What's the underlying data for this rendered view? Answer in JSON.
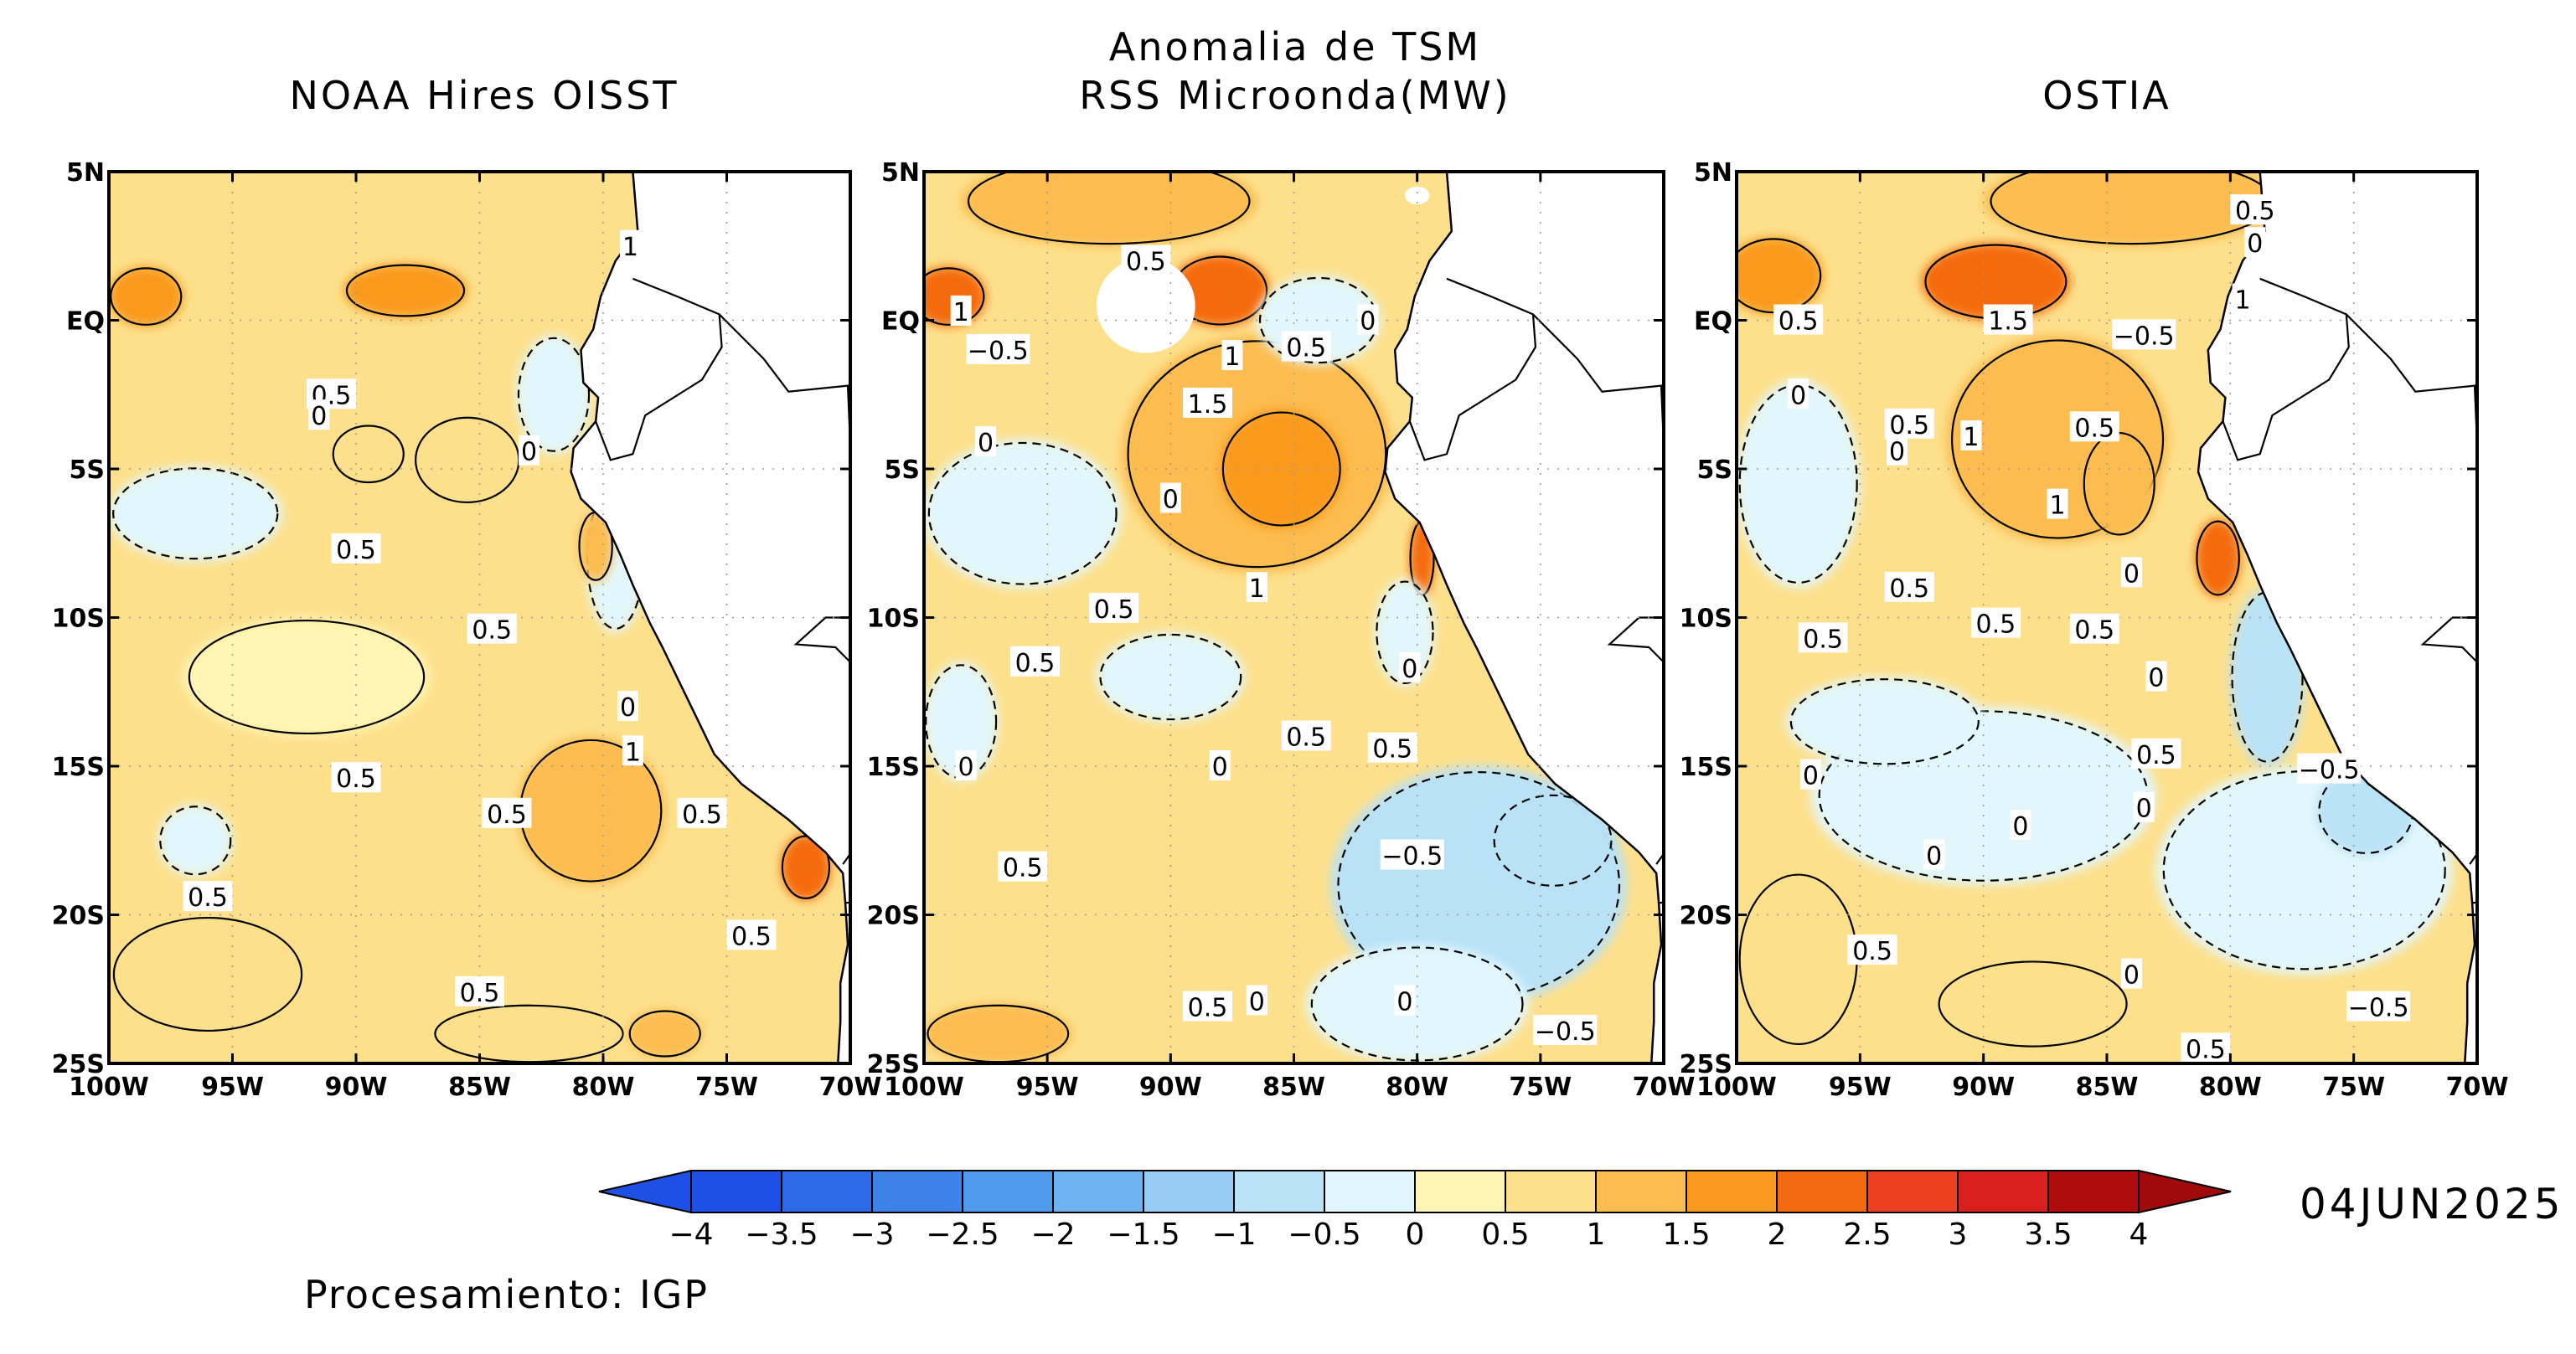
{
  "header": {
    "title_line1": "Anomalia de TSM",
    "title_line2": "RSS Microonda(MW)"
  },
  "panels": [
    {
      "title": "NOAA Hires OISST",
      "base_level": "0.5",
      "labels": [
        {
          "lon": -78.9,
          "lat": 2.5,
          "text": "1"
        },
        {
          "lon": -91.0,
          "lat": -2.5,
          "text": "0.5"
        },
        {
          "lon": -91.5,
          "lat": -3.2,
          "text": "0"
        },
        {
          "lon": -83.0,
          "lat": -4.4,
          "text": "0"
        },
        {
          "lon": -90.0,
          "lat": -7.7,
          "text": "0.5"
        },
        {
          "lon": -84.5,
          "lat": -10.4,
          "text": "0.5"
        },
        {
          "lon": -79.0,
          "lat": -13.0,
          "text": "0"
        },
        {
          "lon": -78.8,
          "lat": -14.5,
          "text": "1"
        },
        {
          "lon": -90.0,
          "lat": -15.4,
          "text": "0.5"
        },
        {
          "lon": -83.9,
          "lat": -16.6,
          "text": "0.5"
        },
        {
          "lon": -76.0,
          "lat": -16.6,
          "text": "0.5"
        },
        {
          "lon": -96.0,
          "lat": -19.4,
          "text": "0.5"
        },
        {
          "lon": -85.0,
          "lat": -22.6,
          "text": "0.5"
        },
        {
          "lon": -74.0,
          "lat": -20.7,
          "text": "0.5"
        }
      ],
      "blobs": [
        {
          "lon": -96.5,
          "lat": -6.5,
          "rx": 3.5,
          "ry": 1.6,
          "level": "-0.3"
        },
        {
          "lon": -79.5,
          "lat": -8.0,
          "rx": 1.2,
          "ry": 2.5,
          "level": "-0.4"
        },
        {
          "lon": -82.0,
          "lat": -2.5,
          "rx": 1.5,
          "ry": 2.0,
          "level": "-0.3"
        },
        {
          "lon": -96.5,
          "lat": -17.5,
          "rx": 1.5,
          "ry": 1.2,
          "level": "-0.2"
        },
        {
          "lon": -88.0,
          "lat": 1.0,
          "rx": 2.5,
          "ry": 0.9,
          "level": "1.6"
        },
        {
          "lon": -98.5,
          "lat": 0.8,
          "rx": 1.5,
          "ry": 1.0,
          "level": "1.5"
        },
        {
          "lon": -85.5,
          "lat": -4.7,
          "rx": 2.2,
          "ry": 1.5,
          "level": "0.9"
        },
        {
          "lon": -89.5,
          "lat": -4.5,
          "rx": 1.5,
          "ry": 1.0,
          "level": "0.8"
        },
        {
          "lon": -80.5,
          "lat": -16.5,
          "rx": 3.0,
          "ry": 2.5,
          "level": "1.0"
        },
        {
          "lon": -71.8,
          "lat": -18.4,
          "rx": 1.0,
          "ry": 1.1,
          "level": "2.2"
        },
        {
          "lon": -80.3,
          "lat": -7.6,
          "rx": 0.7,
          "ry": 1.2,
          "level": "1.3"
        },
        {
          "lon": -83.0,
          "lat": -24.0,
          "rx": 4.0,
          "ry": 1.0,
          "level": "0.9"
        },
        {
          "lon": -77.5,
          "lat": -24.0,
          "rx": 1.5,
          "ry": 0.8,
          "level": "1.0"
        },
        {
          "lon": -92.0,
          "lat": -12.0,
          "rx": 5.0,
          "ry": 2.0,
          "level": "0.3"
        },
        {
          "lon": -96.0,
          "lat": -22.0,
          "rx": 4.0,
          "ry": 2.0,
          "level": "0.7"
        }
      ]
    },
    {
      "title": "",
      "base_level": "0.5",
      "labels": [
        {
          "lon": -91.0,
          "lat": 2.0,
          "text": "0.5"
        },
        {
          "lon": -98.5,
          "lat": 0.3,
          "text": "1"
        },
        {
          "lon": -97.0,
          "lat": -1.0,
          "text": "−0.5"
        },
        {
          "lon": -87.5,
          "lat": -1.2,
          "text": "1"
        },
        {
          "lon": -84.5,
          "lat": -0.9,
          "text": "0.5"
        },
        {
          "lon": -82.0,
          "lat": 0.0,
          "text": "0"
        },
        {
          "lon": -88.5,
          "lat": -2.8,
          "text": "1.5"
        },
        {
          "lon": -97.5,
          "lat": -4.1,
          "text": "0"
        },
        {
          "lon": -90.0,
          "lat": -6.0,
          "text": "0"
        },
        {
          "lon": -86.5,
          "lat": -9.0,
          "text": "1"
        },
        {
          "lon": -92.3,
          "lat": -9.7,
          "text": "0.5"
        },
        {
          "lon": -95.5,
          "lat": -11.5,
          "text": "0.5"
        },
        {
          "lon": -80.3,
          "lat": -11.7,
          "text": "0"
        },
        {
          "lon": -84.5,
          "lat": -14.0,
          "text": "0.5"
        },
        {
          "lon": -81.0,
          "lat": -14.4,
          "text": "0.5"
        },
        {
          "lon": -88.0,
          "lat": -15.0,
          "text": "0"
        },
        {
          "lon": -98.3,
          "lat": -15.0,
          "text": "0"
        },
        {
          "lon": -80.2,
          "lat": -18.0,
          "text": "−0.5"
        },
        {
          "lon": -96.0,
          "lat": -18.4,
          "text": "0.5"
        },
        {
          "lon": -88.5,
          "lat": -23.1,
          "text": "0.5"
        },
        {
          "lon": -86.5,
          "lat": -22.9,
          "text": "0"
        },
        {
          "lon": -80.5,
          "lat": -22.9,
          "text": "0"
        },
        {
          "lon": -74.0,
          "lat": -23.9,
          "text": "−0.5"
        }
      ],
      "blobs": [
        {
          "lon": -86.5,
          "lat": -4.5,
          "rx": 5.5,
          "ry": 4.0,
          "level": "1.2"
        },
        {
          "lon": -85.5,
          "lat": -5.0,
          "rx": 2.5,
          "ry": 2.0,
          "level": "1.6"
        },
        {
          "lon": -88.0,
          "lat": 1.0,
          "rx": 2.0,
          "ry": 1.2,
          "level": "2.2"
        },
        {
          "lon": -99.0,
          "lat": 0.8,
          "rx": 1.5,
          "ry": 1.0,
          "level": "2.3"
        },
        {
          "lon": -92.5,
          "lat": 4.0,
          "rx": 6.0,
          "ry": 1.5,
          "level": "1.3"
        },
        {
          "lon": -96.0,
          "lat": -6.5,
          "rx": 4.0,
          "ry": 2.5,
          "level": "-0.3"
        },
        {
          "lon": -84.0,
          "lat": 0.0,
          "rx": 2.5,
          "ry": 1.5,
          "level": "-0.3"
        },
        {
          "lon": -77.5,
          "lat": -19.0,
          "rx": 6.0,
          "ry": 4.0,
          "level": "-0.6"
        },
        {
          "lon": -74.5,
          "lat": -17.5,
          "rx": 2.5,
          "ry": 1.6,
          "level": "-0.9"
        },
        {
          "lon": -80.0,
          "lat": -23.0,
          "rx": 4.5,
          "ry": 2.0,
          "level": "-0.5"
        },
        {
          "lon": -79.8,
          "lat": -8.0,
          "rx": 0.5,
          "ry": 1.3,
          "level": "2.4"
        },
        {
          "lon": -97.0,
          "lat": -24.0,
          "rx": 3.0,
          "ry": 1.0,
          "level": "1.0"
        },
        {
          "lon": -98.5,
          "lat": -13.5,
          "rx": 1.5,
          "ry": 2.0,
          "level": "-0.2"
        },
        {
          "lon": -90.0,
          "lat": -12.0,
          "rx": 3.0,
          "ry": 1.5,
          "level": "-0.2"
        },
        {
          "lon": -80.5,
          "lat": -10.5,
          "rx": 1.2,
          "ry": 1.8,
          "level": "-0.4"
        }
      ],
      "masks": [
        {
          "lon": -91.0,
          "lat": 0.5,
          "rx": 2.0,
          "ry": 1.6
        },
        {
          "lon": -80.0,
          "lat": 4.2,
          "rx": 0.5,
          "ry": 0.3
        }
      ]
    },
    {
      "title": "OSTIA",
      "base_level": "0.5",
      "labels": [
        {
          "lon": -79.0,
          "lat": 3.7,
          "text": "0.5"
        },
        {
          "lon": -79.0,
          "lat": 2.6,
          "text": "0"
        },
        {
          "lon": -97.5,
          "lat": 0.0,
          "text": "0.5"
        },
        {
          "lon": -89.0,
          "lat": 0.0,
          "text": "1.5"
        },
        {
          "lon": -83.5,
          "lat": -0.5,
          "text": "−0.5"
        },
        {
          "lon": -79.5,
          "lat": 0.7,
          "text": "1"
        },
        {
          "lon": -97.5,
          "lat": -2.5,
          "text": "0"
        },
        {
          "lon": -93.0,
          "lat": -3.5,
          "text": "0.5"
        },
        {
          "lon": -93.5,
          "lat": -4.4,
          "text": "0"
        },
        {
          "lon": -90.5,
          "lat": -3.9,
          "text": "1"
        },
        {
          "lon": -85.5,
          "lat": -3.6,
          "text": "0.5"
        },
        {
          "lon": -87.0,
          "lat": -6.2,
          "text": "1"
        },
        {
          "lon": -84.0,
          "lat": -8.5,
          "text": "0"
        },
        {
          "lon": -93.0,
          "lat": -9.0,
          "text": "0.5"
        },
        {
          "lon": -89.5,
          "lat": -10.2,
          "text": "0.5"
        },
        {
          "lon": -85.5,
          "lat": -10.4,
          "text": "0.5"
        },
        {
          "lon": -96.5,
          "lat": -10.7,
          "text": "0.5"
        },
        {
          "lon": -83.0,
          "lat": -12.0,
          "text": "0"
        },
        {
          "lon": -83.0,
          "lat": -14.6,
          "text": "0.5"
        },
        {
          "lon": -76.0,
          "lat": -15.1,
          "text": "−0.5"
        },
        {
          "lon": -97.0,
          "lat": -15.3,
          "text": "0"
        },
        {
          "lon": -83.5,
          "lat": -16.4,
          "text": "0"
        },
        {
          "lon": -88.5,
          "lat": -17.0,
          "text": "0"
        },
        {
          "lon": -92.0,
          "lat": -18.0,
          "text": "0"
        },
        {
          "lon": -94.5,
          "lat": -21.2,
          "text": "0.5"
        },
        {
          "lon": -84.0,
          "lat": -22.0,
          "text": "0"
        },
        {
          "lon": -74.0,
          "lat": -23.1,
          "text": "−0.5"
        },
        {
          "lon": -81.0,
          "lat": -24.5,
          "text": "0.5"
        }
      ],
      "blobs": [
        {
          "lon": -87.0,
          "lat": -4.0,
          "rx": 4.5,
          "ry": 3.5,
          "level": "1.0"
        },
        {
          "lon": -84.5,
          "lat": -5.5,
          "rx": 1.5,
          "ry": 1.8,
          "level": "1.4"
        },
        {
          "lon": -89.5,
          "lat": 1.3,
          "rx": 3.0,
          "ry": 1.3,
          "level": "2.1"
        },
        {
          "lon": -98.5,
          "lat": 1.5,
          "rx": 2.0,
          "ry": 1.3,
          "level": "1.6"
        },
        {
          "lon": -84.0,
          "lat": 4.0,
          "rx": 6.0,
          "ry": 1.5,
          "level": "1.1"
        },
        {
          "lon": -77.0,
          "lat": -18.5,
          "rx": 6.0,
          "ry": 3.5,
          "level": "-0.3"
        },
        {
          "lon": -74.5,
          "lat": -16.5,
          "rx": 2.0,
          "ry": 1.5,
          "level": "-0.8"
        },
        {
          "lon": -78.5,
          "lat": -12.0,
          "rx": 1.5,
          "ry": 3.0,
          "level": "-0.6"
        },
        {
          "lon": -80.5,
          "lat": -8.0,
          "rx": 0.9,
          "ry": 1.3,
          "level": "2.0"
        },
        {
          "lon": -97.5,
          "lat": -5.5,
          "rx": 2.5,
          "ry": 3.5,
          "level": "-0.3"
        },
        {
          "lon": -90.0,
          "lat": -16.0,
          "rx": 7.0,
          "ry": 3.0,
          "level": "-0.2"
        },
        {
          "lon": -94.0,
          "lat": -13.5,
          "rx": 4.0,
          "ry": 1.5,
          "level": "-0.3"
        },
        {
          "lon": -97.5,
          "lat": -21.5,
          "rx": 2.5,
          "ry": 3.0,
          "level": "0.8"
        },
        {
          "lon": -88.0,
          "lat": -23.0,
          "rx": 4.0,
          "ry": 1.5,
          "level": "0.7"
        }
      ]
    }
  ],
  "axes": {
    "lat_ticks": [
      "5N",
      "EQ",
      "5S",
      "10S",
      "15S",
      "20S",
      "25S"
    ],
    "lon_ticks": [
      "100W",
      "95W",
      "90W",
      "85W",
      "80W",
      "75W",
      "70W"
    ]
  },
  "map_extent": {
    "lon_min": -100,
    "lon_max": -70,
    "lat_min": -25,
    "lat_max": 5
  },
  "colorbar": {
    "labels": [
      "−4",
      "−3.5",
      "−3",
      "−2.5",
      "−2",
      "−1.5",
      "−1",
      "−0.5",
      "0",
      "0.5",
      "1",
      "1.5",
      "2",
      "2.5",
      "3",
      "3.5",
      "4"
    ],
    "colors": [
      "#1e50e6",
      "#2d6ae8",
      "#3c82ea",
      "#509aec",
      "#6eb2f0",
      "#96cbf5",
      "#b9e2f7",
      "#e2f7fb",
      "#fff5b4",
      "#fde08c",
      "#fcbc50",
      "#f99a1e",
      "#f56a10",
      "#ee4020",
      "#d8201c",
      "#b00c0c"
    ],
    "under_color": "#1e50e6",
    "over_color": "#a00a0a"
  },
  "date": "04JUN2025",
  "credit": "Procesamiento: IGP",
  "land_color": "#ffffff",
  "coast_outline": [
    [
      -78.8,
      5.0
    ],
    [
      -78.6,
      3.0
    ],
    [
      -79.5,
      2.0
    ],
    [
      -80.1,
      0.8
    ],
    [
      -80.4,
      -0.3
    ],
    [
      -80.9,
      -1.0
    ],
    [
      -80.8,
      -2.1
    ],
    [
      -80.2,
      -2.6
    ],
    [
      -80.3,
      -3.4
    ],
    [
      -81.2,
      -4.3
    ],
    [
      -81.3,
      -5.1
    ],
    [
      -80.9,
      -6.0
    ],
    [
      -79.9,
      -6.8
    ],
    [
      -79.3,
      -7.9
    ],
    [
      -78.8,
      -8.9
    ],
    [
      -78.1,
      -10.2
    ],
    [
      -77.6,
      -11.0
    ],
    [
      -76.9,
      -12.2
    ],
    [
      -76.2,
      -13.4
    ],
    [
      -75.5,
      -14.6
    ],
    [
      -74.4,
      -15.6
    ],
    [
      -72.5,
      -16.8
    ],
    [
      -71.0,
      -17.9
    ],
    [
      -70.3,
      -18.6
    ],
    [
      -70.2,
      -19.6
    ],
    [
      -70.1,
      -21.0
    ],
    [
      -70.4,
      -22.3
    ],
    [
      -70.4,
      -23.6
    ],
    [
      -70.5,
      -25.0
    ]
  ],
  "borders": [
    [
      [
        -78.8,
        1.4
      ],
      [
        -77.0,
        0.8
      ],
      [
        -75.3,
        0.2
      ],
      [
        -75.2,
        -0.9
      ],
      [
        -76.0,
        -2.0
      ],
      [
        -78.3,
        -3.2
      ],
      [
        -78.8,
        -4.5
      ],
      [
        -79.7,
        -4.7
      ],
      [
        -80.3,
        -3.4
      ]
    ],
    [
      [
        -75.3,
        0.2
      ],
      [
        -73.5,
        -1.3
      ],
      [
        -72.5,
        -2.4
      ],
      [
        -70.1,
        -2.2
      ],
      [
        -70.0,
        -4.2
      ]
    ],
    [
      [
        -70.0,
        -10.0
      ],
      [
        -71.0,
        -10.0
      ],
      [
        -72.2,
        -10.9
      ],
      [
        -70.6,
        -11.0
      ],
      [
        -70.0,
        -11.5
      ]
    ],
    [
      [
        -70.0,
        -13.5
      ],
      [
        -69.6,
        -15.3
      ],
      [
        -69.4,
        -16.4
      ],
      [
        -69.7,
        -17.6
      ],
      [
        -70.3,
        -18.3
      ]
    ],
    [
      [
        -70.2,
        -19.6
      ],
      [
        -68.9,
        -19.5
      ],
      [
        -68.5,
        -21.0
      ],
      [
        -67.8,
        -22.8
      ],
      [
        -67.3,
        -24.0
      ],
      [
        -68.5,
        -25.0
      ]
    ]
  ]
}
